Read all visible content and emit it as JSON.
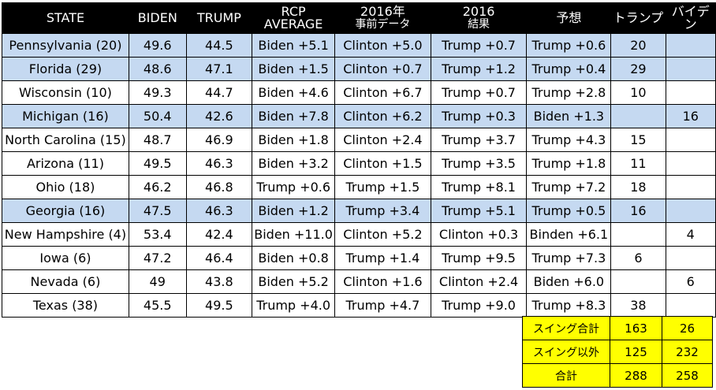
{
  "headers": [
    "STATE",
    "BIDEN",
    "TRUMP",
    [
      "RCP",
      "AVERAGE"
    ],
    [
      "2016年",
      "事前データ"
    ],
    [
      "2016",
      "結果"
    ],
    "予想",
    "トランプ",
    "バイデン"
  ],
  "rows": [
    {
      "state": "Pennsylvania (20)",
      "biden": "49.6",
      "trump": "44.5",
      "rcp": "Biden +5.1",
      "pre2016": "Clinton +5.0",
      "res2016": "Trump +0.7",
      "forecast": "Trump +0.6",
      "ev_trump": "20",
      "ev_biden": "",
      "highlight": true
    },
    {
      "state": "Florida (29)",
      "biden": "48.6",
      "trump": "47.1",
      "rcp": "Biden +1.5",
      "pre2016": "Clinton +0.7",
      "res2016": "Trump +1.2",
      "forecast": "Trump +0.4",
      "ev_trump": "29",
      "ev_biden": "",
      "highlight": true
    },
    {
      "state": "Wisconsin (10)",
      "biden": "49.3",
      "trump": "44.7",
      "rcp": "Biden +4.6",
      "pre2016": "Clinton +6.7",
      "res2016": "Trump +0.7",
      "forecast": "Trump +2.8",
      "ev_trump": "10",
      "ev_biden": "",
      "highlight": false
    },
    {
      "state": "Michigan (16)",
      "biden": "50.4",
      "trump": "42.6",
      "rcp": "Biden +7.8",
      "pre2016": "Clinton +6.2",
      "res2016": "Trump +0.3",
      "forecast": "Biden +1.3",
      "ev_trump": "",
      "ev_biden": "16",
      "highlight": true
    },
    {
      "state": "North Carolina (15)",
      "biden": "48.7",
      "trump": "46.9",
      "rcp": "Biden +1.8",
      "pre2016": "Clinton +2.4",
      "res2016": "Trump +3.7",
      "forecast": "Trump +4.3",
      "ev_trump": "15",
      "ev_biden": "",
      "highlight": false
    },
    {
      "state": "Arizona (11)",
      "biden": "49.5",
      "trump": "46.3",
      "rcp": "Biden +3.2",
      "pre2016": "Clinton +1.5",
      "res2016": "Trump +3.5",
      "forecast": "Trump +1.8",
      "ev_trump": "11",
      "ev_biden": "",
      "highlight": false
    },
    {
      "state": "Ohio (18)",
      "biden": "46.2",
      "trump": "46.8",
      "rcp": "Trump +0.6",
      "pre2016": "Trump +1.5",
      "res2016": "Trump +8.1",
      "forecast": "Trump +7.2",
      "ev_trump": "18",
      "ev_biden": "",
      "highlight": false
    },
    {
      "state": "Georgia (16)",
      "biden": "47.5",
      "trump": "46.3",
      "rcp": "Biden +1.2",
      "pre2016": "Trump +3.4",
      "res2016": "Trump +5.1",
      "forecast": "Trump +0.5",
      "ev_trump": "16",
      "ev_biden": "",
      "highlight": true
    },
    {
      "state": "New Hampshire (4)",
      "biden": "53.4",
      "trump": "42.4",
      "rcp": "Biden +11.0",
      "pre2016": "Clinton +5.2",
      "res2016": "Clinton +0.3",
      "forecast": "Binden +6.1",
      "ev_trump": "",
      "ev_biden": "4",
      "highlight": false
    },
    {
      "state": "Iowa (6)",
      "biden": "47.2",
      "trump": "46.4",
      "rcp": "Biden +0.8",
      "pre2016": "Trump +1.4",
      "res2016": "Trump +9.5",
      "forecast": "Trump +7.3",
      "ev_trump": "6",
      "ev_biden": "",
      "highlight": false
    },
    {
      "state": "Nevada (6)",
      "biden": "49",
      "trump": "43.8",
      "rcp": "Biden +5.2",
      "pre2016": "Clinton +1.6",
      "res2016": "Clinton +2.4",
      "forecast": "Biden +6.0",
      "ev_trump": "",
      "ev_biden": "6",
      "highlight": false
    },
    {
      "state": "Texas (38)",
      "biden": "45.5",
      "trump": "49.5",
      "rcp": "Trump +4.0",
      "pre2016": "Trump +4.7",
      "res2016": "Trump +9.0",
      "forecast": "Trump +8.3",
      "ev_trump": "38",
      "ev_biden": "",
      "highlight": false
    }
  ],
  "totals": [
    {
      "label": "スイング合計",
      "trump": "163",
      "biden": "26"
    },
    {
      "label": "スイング以外",
      "trump": "125",
      "biden": "232"
    },
    {
      "label": "合計",
      "trump": "288",
      "biden": "258"
    }
  ],
  "colors": {
    "header_bg": "#000000",
    "highlight_row": "#c5d9f1",
    "totals_bg": "#ffff00"
  }
}
